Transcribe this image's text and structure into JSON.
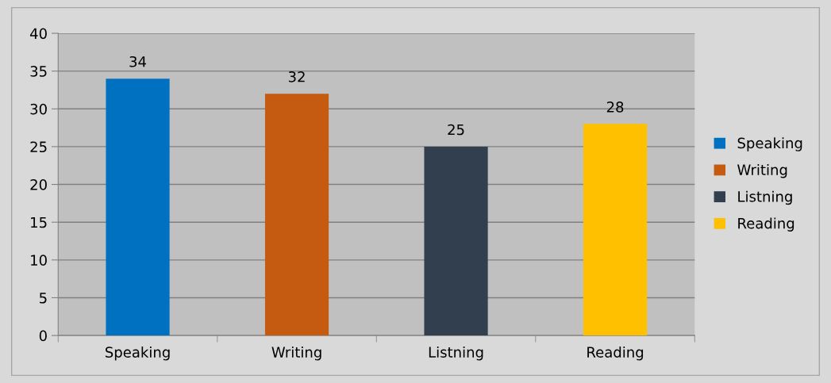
{
  "chart_data": {
    "type": "bar",
    "categories": [
      "Speaking",
      "Writing",
      "Listning",
      "Reading"
    ],
    "series": [
      {
        "name": "Speaking",
        "color": "#0070c0",
        "values": [
          34,
          null,
          null,
          null
        ]
      },
      {
        "name": "Writing",
        "color": "#c55a11",
        "values": [
          null,
          32,
          null,
          null
        ]
      },
      {
        "name": "Listning",
        "color": "#323f4f",
        "values": [
          null,
          null,
          25,
          null
        ]
      },
      {
        "name": "Reading",
        "color": "#ffc000",
        "values": [
          null,
          null,
          null,
          28
        ]
      }
    ],
    "ylim": [
      0,
      40
    ],
    "yticks": [
      0,
      5,
      10,
      15,
      20,
      25,
      30,
      35,
      40
    ],
    "grid": "y",
    "legend": "right",
    "data_labels": true
  }
}
